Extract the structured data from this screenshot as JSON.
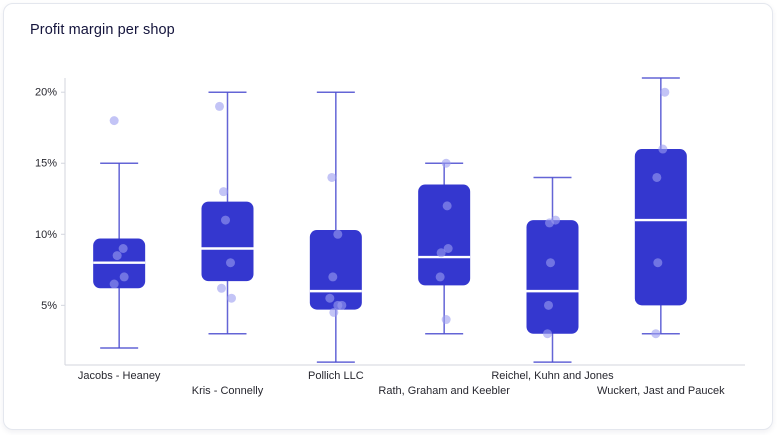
{
  "chart_data": {
    "type": "boxplot",
    "title": "Profit margin per shop",
    "categories": [
      "Jacobs - Heaney",
      "Kris - Connelly",
      "Pollich LLC",
      "Rath, Graham and Keebler",
      "Reichel, Kuhn and Jones",
      "Wuckert, Jast and Paucek"
    ],
    "ylabel": "",
    "yticks": [
      5,
      10,
      15,
      20
    ],
    "ytick_suffix": "%",
    "ylim": [
      0.8,
      21
    ],
    "grid": false,
    "legend": "none",
    "series": [
      {
        "name": "Jacobs - Heaney",
        "min": 2,
        "q1": 6.2,
        "median": 8,
        "q3": 9.7,
        "max": 15,
        "points": [
          [
            18,
            -5
          ],
          [
            9,
            4
          ],
          [
            8.5,
            -2
          ],
          [
            7,
            5
          ],
          [
            6.5,
            -5
          ]
        ]
      },
      {
        "name": "Kris - Connelly",
        "min": 3,
        "q1": 6.7,
        "median": 9,
        "q3": 12.3,
        "max": 20,
        "points": [
          [
            19,
            -8
          ],
          [
            13,
            -4
          ],
          [
            11,
            -2
          ],
          [
            8,
            3
          ],
          [
            6.2,
            -6
          ],
          [
            5.5,
            4
          ]
        ]
      },
      {
        "name": "Pollich LLC",
        "min": 1,
        "q1": 4.7,
        "median": 6,
        "q3": 10.3,
        "max": 20,
        "points": [
          [
            14,
            -4
          ],
          [
            10,
            2
          ],
          [
            7,
            -3
          ],
          [
            5.5,
            -6
          ],
          [
            5,
            2
          ],
          [
            5,
            6
          ],
          [
            4.5,
            -2
          ]
        ]
      },
      {
        "name": "Rath, Graham and Keebler",
        "min": 3,
        "q1": 6.4,
        "median": 8.4,
        "q3": 13.5,
        "max": 15,
        "points": [
          [
            15,
            2
          ],
          [
            12,
            3
          ],
          [
            9,
            4
          ],
          [
            8.7,
            -3
          ],
          [
            7,
            -4
          ],
          [
            4,
            2
          ]
        ]
      },
      {
        "name": "Reichel, Kuhn and Jones",
        "min": 1,
        "q1": 3,
        "median": 6,
        "q3": 11,
        "max": 14,
        "points": [
          [
            11,
            3
          ],
          [
            10.8,
            -3
          ],
          [
            8,
            -2
          ],
          [
            5,
            -4
          ],
          [
            3,
            -5
          ]
        ]
      },
      {
        "name": "Wuckert, Jast and Paucek",
        "min": 3,
        "q1": 5,
        "median": 11,
        "q3": 16,
        "max": 21,
        "points": [
          [
            20,
            4
          ],
          [
            16,
            2
          ],
          [
            14,
            -4
          ],
          [
            8,
            -3
          ],
          [
            3,
            -5
          ]
        ]
      }
    ],
    "colors": {
      "box": "#3437cf",
      "median": "#ffffff",
      "whisker": "#4a4bd0",
      "point": "#9b9cf0",
      "axis": "#d3d6de",
      "tick_label": "#27272f",
      "title": "#14143c"
    }
  }
}
